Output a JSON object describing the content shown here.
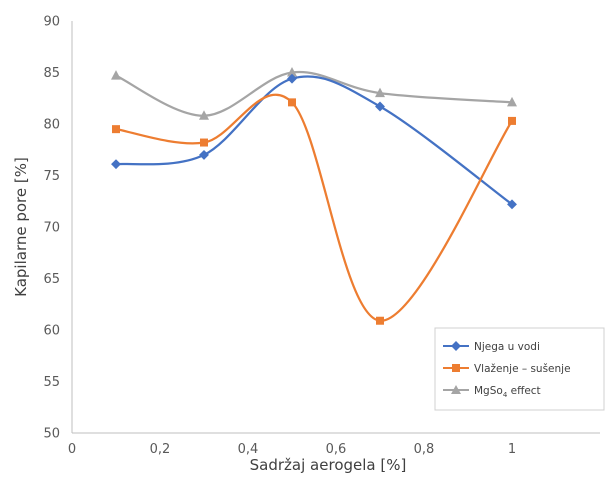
{
  "chart_data": {
    "type": "line",
    "title": "",
    "xlabel": "Sadržaj aerogela [%]",
    "ylabel": "Kapilarne pore [%]",
    "xlim": [
      0,
      1.2
    ],
    "ylim": [
      50,
      90
    ],
    "x_ticks": [
      "0",
      "0,2",
      "0,4",
      "0,6",
      "0,8",
      "1"
    ],
    "x_tick_values": [
      0,
      0.2,
      0.4,
      0.6,
      0.8,
      1.0
    ],
    "y_ticks": [
      "50",
      "55",
      "60",
      "65",
      "70",
      "75",
      "80",
      "85",
      "90"
    ],
    "y_tick_values": [
      50,
      55,
      60,
      65,
      70,
      75,
      80,
      85,
      90
    ],
    "grid": false,
    "legend_position": "bottom-right",
    "smooth": true,
    "series": [
      {
        "name": "Njega u vodi",
        "marker": "diamond",
        "color": "#4472C4",
        "x": [
          0.1,
          0.3,
          0.5,
          0.7,
          1.0
        ],
        "y": [
          76.1,
          77.0,
          84.4,
          81.7,
          72.2
        ]
      },
      {
        "name": "Vlaženje – sušenje",
        "marker": "square",
        "color": "#ED7D31",
        "x": [
          0.1,
          0.3,
          0.5,
          0.7,
          1.0
        ],
        "y": [
          79.5,
          78.2,
          82.1,
          60.9,
          80.3
        ]
      },
      {
        "name": "MgSo",
        "name_subscript": "4",
        "name_suffix": " effect",
        "marker": "triangle",
        "color": "#A5A5A5",
        "x": [
          0.1,
          0.3,
          0.5,
          0.7,
          1.0
        ],
        "y": [
          84.7,
          80.8,
          85.0,
          83.0,
          82.1
        ]
      }
    ]
  }
}
